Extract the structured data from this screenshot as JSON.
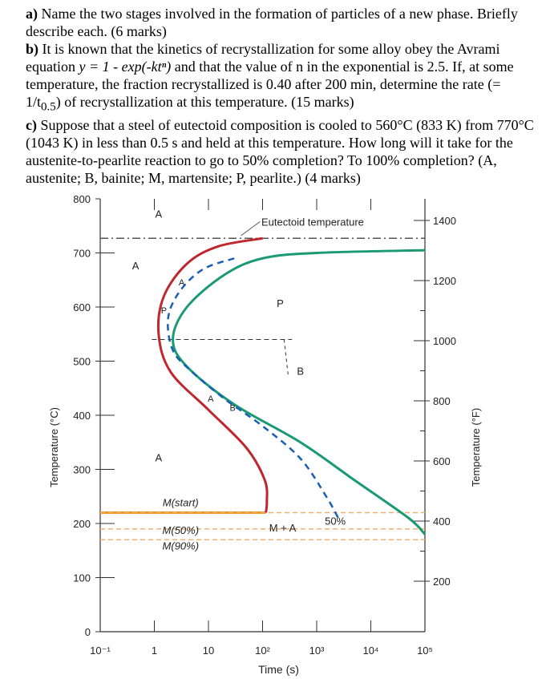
{
  "questions": {
    "a_label": "a)",
    "a_text": " Name the two stages involved in the formation of particles of a new phase. Briefly describe each. (6 marks)",
    "b_label": "b)",
    "b_text_1": " It is known that the kinetics of recrystallization for some alloy obey the Avrami equation ",
    "b_equation": "y = 1 - exp(-ktⁿ)",
    "b_text_2": " and that the value of n in the exponential is 2.5. If, at some temperature, the fraction recrystallized is 0.40 after 200 min, determine the rate (= 1/t",
    "b_sub": "0.5",
    "b_text_3": ") of recrystallization at this temperature. (15 marks)",
    "c_label": "c)",
    "c_text": " Suppose that a steel of eutectoid composition is cooled to 560°C (833 K) from 770°C (1043 K) in less than 0.5 s and held at this temperature. How long will it take for the austenite-to-pearlite reaction to go to 50% completion? To 100% completion?  (A, austenite; B, bainite; M, martensite; P, pearlite.) (4 marks)"
  },
  "chart_data": {
    "type": "line",
    "xlabel": "Time (s)",
    "ylabel": "Temperature (°C)",
    "y2label": "Temperature (°F)",
    "x_scale": "log",
    "xlim": [
      0.1,
      100000
    ],
    "ylim": [
      0,
      800
    ],
    "x_ticks": [
      0.1,
      1,
      10,
      100,
      1000,
      10000,
      100000
    ],
    "x_tick_labels": [
      "10⁻¹",
      "1",
      "10",
      "10²",
      "10³",
      "10⁴",
      "10⁵"
    ],
    "y_ticks": [
      0,
      100,
      200,
      300,
      400,
      500,
      600,
      700,
      800
    ],
    "y_tick_labels": [
      "0",
      "100",
      "200",
      "300",
      "400",
      "500",
      "600",
      "700",
      "800"
    ],
    "y2_ticks_F": [
      200,
      400,
      600,
      800,
      1000,
      1200,
      1400
    ],
    "y2_tick_labels": [
      "200",
      "400",
      "600",
      "800",
      "1000",
      "1200",
      "1400"
    ],
    "series": [
      {
        "name": "",
        "color": "#c0262d",
        "style": "solid",
        "points": [
          [
            100,
            727
          ],
          [
            15,
            712
          ],
          [
            4,
            680
          ],
          [
            1.5,
            620
          ],
          [
            1.2,
            550
          ],
          [
            2,
            480
          ],
          [
            10,
            410
          ],
          [
            50,
            340
          ],
          [
            110,
            280
          ],
          [
            120,
            240
          ],
          [
            115,
            220
          ]
        ]
      },
      {
        "name": "",
        "color": "#1a9a73",
        "style": "solid",
        "points": [
          [
            100000,
            705
          ],
          [
            1000,
            700
          ],
          [
            100,
            690
          ],
          [
            20,
            660
          ],
          [
            4,
            600
          ],
          [
            2.2,
            540
          ],
          [
            4,
            490
          ],
          [
            30,
            420
          ],
          [
            500,
            350
          ],
          [
            5000,
            280
          ],
          [
            50000,
            210
          ],
          [
            100000,
            180
          ]
        ]
      },
      {
        "name": "50%",
        "color": "#1a5fb4",
        "style": "dashed",
        "points": [
          [
            30,
            690
          ],
          [
            8,
            670
          ],
          [
            3,
            630
          ],
          [
            1.8,
            580
          ],
          [
            2.2,
            520
          ],
          [
            5,
            480
          ],
          [
            20,
            430
          ],
          [
            100,
            380
          ],
          [
            500,
            320
          ],
          [
            1500,
            250
          ],
          [
            2500,
            210
          ]
        ]
      }
    ],
    "horizontal_lines": [
      {
        "label": "Eutectoid temperature",
        "y": 727,
        "color": "#555555",
        "style": "dash-dot"
      },
      {
        "label": "M(start)",
        "y": 220,
        "color": "#f0951e",
        "style": "solid"
      },
      {
        "label": "M(50%)",
        "y": 190,
        "color": "#f0b070",
        "style": "dashed"
      },
      {
        "label": "M(90%)",
        "y": 170,
        "color": "#f0b070",
        "style": "dashed"
      },
      {
        "label": "",
        "y": 220,
        "color": "#f0b070",
        "style": "dashed"
      }
    ],
    "region_labels": [
      "A",
      "A",
      "P",
      "B",
      "A",
      "M + A",
      "50%"
    ],
    "curve_labels": [
      "A",
      "P",
      "A",
      "B"
    ]
  }
}
